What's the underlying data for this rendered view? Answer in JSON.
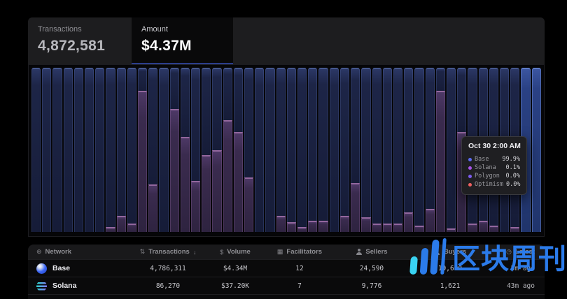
{
  "tabs": [
    {
      "label": "Transactions",
      "value": "4,872,581",
      "active": false
    },
    {
      "label": "Amount",
      "value": "$4.37M",
      "active": true
    }
  ],
  "chart_data": {
    "type": "bar",
    "subtype": "100%-stacked-hourly-share",
    "title": "",
    "xlabel": "",
    "ylabel": "",
    "grid": false,
    "legend_position": "tooltip",
    "series": [
      {
        "name": "Base",
        "color": "#5c6cf2"
      },
      {
        "name": "Solana",
        "color": "#a855e8"
      },
      {
        "name": "Polygon",
        "color": "#7c5cf0"
      },
      {
        "name": "Optimism",
        "color": "#ef6060"
      }
    ],
    "bar_count": 48,
    "solana_share_pct": [
      0,
      0,
      0,
      0,
      0,
      0,
      0,
      3,
      10,
      5,
      86,
      29,
      0,
      75,
      58,
      31,
      47,
      50,
      68,
      61,
      33,
      0,
      0,
      10,
      6,
      3,
      7,
      7,
      0,
      10,
      30,
      9,
      5,
      5,
      5,
      12,
      4,
      14,
      86,
      2,
      61,
      5,
      7,
      4,
      0,
      3,
      0,
      0
    ],
    "highlight_last_n": 2,
    "hovered_point": {
      "label": "Oct 30 2:00 AM",
      "Base": "99.9%",
      "Solana": "0.1%",
      "Polygon": "0.0%",
      "Optimism": "0.0%"
    }
  },
  "tooltip": {
    "title": "Oct 30 2:00 AM",
    "rows": [
      {
        "name": "Base",
        "value": "99.9%",
        "color": "#5c6cf2"
      },
      {
        "name": "Solana",
        "value": "0.1%",
        "color": "#a855e8"
      },
      {
        "name": "Polygon",
        "value": "0.0%",
        "color": "#7c5cf0"
      },
      {
        "name": "Optimism",
        "value": "0.0%",
        "color": "#ef6060"
      }
    ]
  },
  "table": {
    "headers": [
      {
        "label": "Network",
        "icon": "globe-icon"
      },
      {
        "label": "Transactions",
        "icon": "sort-icon",
        "suffix": "↓"
      },
      {
        "label": "Volume",
        "icon": "dollar-icon"
      },
      {
        "label": "Facilitators",
        "icon": "grid-icon"
      },
      {
        "label": "Sellers",
        "icon": "person-icon"
      },
      {
        "label": "Buyers",
        "icon": "person-icon"
      },
      {
        "label": "Latest",
        "icon": "clock-icon"
      }
    ],
    "rows": [
      {
        "network": "Base",
        "icon": "base",
        "transactions": "4,786,311",
        "volume": "$4.34M",
        "facilitators": "12",
        "sellers": "24,590",
        "buyers": "19,690",
        "latest": "5m ago"
      },
      {
        "network": "Solana",
        "icon": "solana",
        "transactions": "86,270",
        "volume": "$37.20K",
        "facilitators": "7",
        "sellers": "9,776",
        "buyers": "1,621",
        "latest": "43m ago"
      }
    ]
  },
  "watermark": {
    "text": "区块周刊"
  },
  "colors": {
    "accent_underline": "#2c3e8c",
    "bar_base": "#1d2547",
    "bar_solana": "#3a2b4e",
    "bar_highlight": "#2a4184",
    "watermark_blue": "#2b7bea",
    "watermark_cyan": "#39d3f2"
  }
}
